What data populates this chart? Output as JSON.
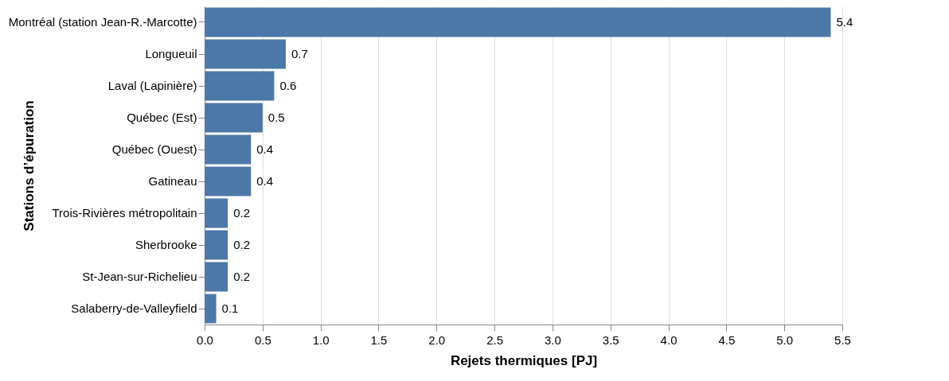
{
  "chart_data": {
    "type": "bar",
    "orientation": "horizontal",
    "xlabel": "Rejets thermiques [PJ]",
    "ylabel": "Stations d’épuration",
    "categories": [
      "Montréal (station Jean-R.-Marcotte)",
      "Longueuil",
      "Laval (Lapinière)",
      "Québec (Est)",
      "Québec (Ouest)",
      "Gatineau",
      "Trois-Rivières métropolitain",
      "Sherbrooke",
      "St-Jean-sur-Richelieu",
      "Salaberry-de-Valleyfield"
    ],
    "values": [
      5.4,
      0.7,
      0.6,
      0.5,
      0.4,
      0.4,
      0.2,
      0.2,
      0.2,
      0.1
    ],
    "color": "#4c78a8",
    "data_labels": true,
    "grid": "x",
    "xlim": [
      0,
      5.5
    ],
    "xticks": [
      {
        "value": 0,
        "label": "0.0"
      },
      0.5,
      {
        "value": 1,
        "label": "1.0"
      },
      1.5,
      {
        "value": 2,
        "label": "2.0"
      },
      2.5,
      {
        "value": 3,
        "label": "3.0"
      },
      3.5,
      {
        "value": 4,
        "label": "4.0"
      },
      4.5,
      {
        "value": 5,
        "label": "5.0"
      },
      5.5
    ]
  }
}
